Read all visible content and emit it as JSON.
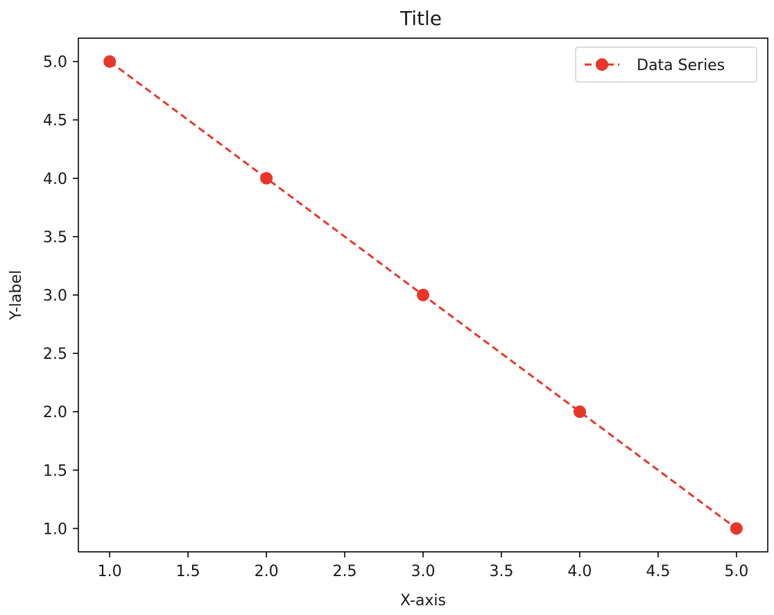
{
  "chart_data": {
    "type": "line",
    "title": "Title",
    "xlabel": "X-axis",
    "ylabel": "Y-label",
    "xlim": [
      0.8,
      5.2
    ],
    "ylim": [
      0.8,
      5.2
    ],
    "xticks": [
      1.0,
      1.5,
      2.0,
      2.5,
      3.0,
      3.5,
      4.0,
      4.5,
      5.0
    ],
    "yticks": [
      1.0,
      1.5,
      2.0,
      2.5,
      3.0,
      3.5,
      4.0,
      4.5,
      5.0
    ],
    "xtick_labels": [
      "1.0",
      "1.5",
      "2.0",
      "2.5",
      "3.0",
      "3.5",
      "4.0",
      "4.5",
      "5.0"
    ],
    "ytick_labels": [
      "1.0",
      "1.5",
      "2.0",
      "2.5",
      "3.0",
      "3.5",
      "4.0",
      "4.5",
      "5.0"
    ],
    "grid": false,
    "legend_position": "top-right",
    "series": [
      {
        "name": "Data Series",
        "color": "#e8372a",
        "line_style": "dashed",
        "marker": "circle",
        "x": [
          1,
          2,
          3,
          4,
          5
        ],
        "y": [
          5,
          4,
          3,
          2,
          1
        ]
      }
    ]
  }
}
